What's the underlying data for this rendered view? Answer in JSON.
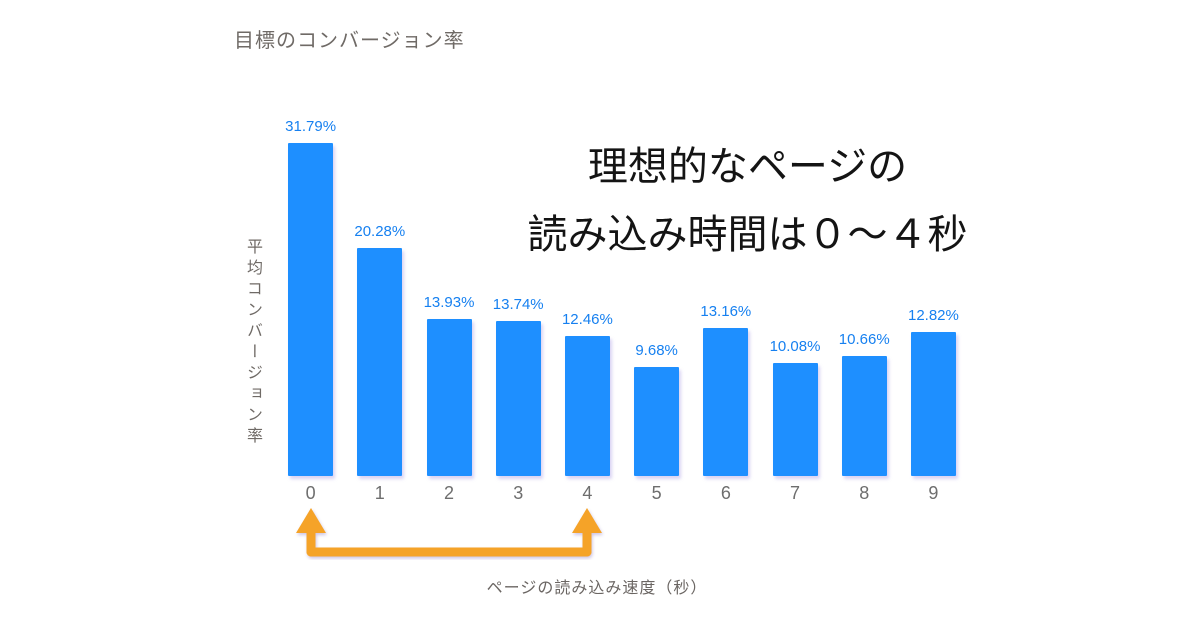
{
  "chart_data": {
    "type": "bar",
    "title": "目標のコンバージョン率",
    "categories": [
      "0",
      "1",
      "2",
      "3",
      "4",
      "5",
      "6",
      "7",
      "8",
      "9"
    ],
    "values": [
      31.79,
      20.28,
      13.93,
      13.74,
      12.46,
      9.68,
      13.16,
      10.08,
      10.66,
      12.82
    ],
    "value_labels": [
      "31.79%",
      "20.28%",
      "13.93%",
      "13.74%",
      "12.46%",
      "9.68%",
      "13.16%",
      "10.08%",
      "10.66%",
      "12.82%"
    ],
    "xlabel": "ページの読み込み速度（秒）",
    "ylabel": "平均コンバージョン率",
    "ylim": [
      0,
      31.79
    ],
    "grid": false,
    "legend": false,
    "bar_color": "#1e8fff",
    "value_label_color": "#1680f0"
  },
  "annotation": {
    "line1": "理想的なページの",
    "line2": "読み込み時間は０～４秒",
    "arrow_color": "#f5a328",
    "arrow_from_category": "0",
    "arrow_to_category": "4"
  }
}
